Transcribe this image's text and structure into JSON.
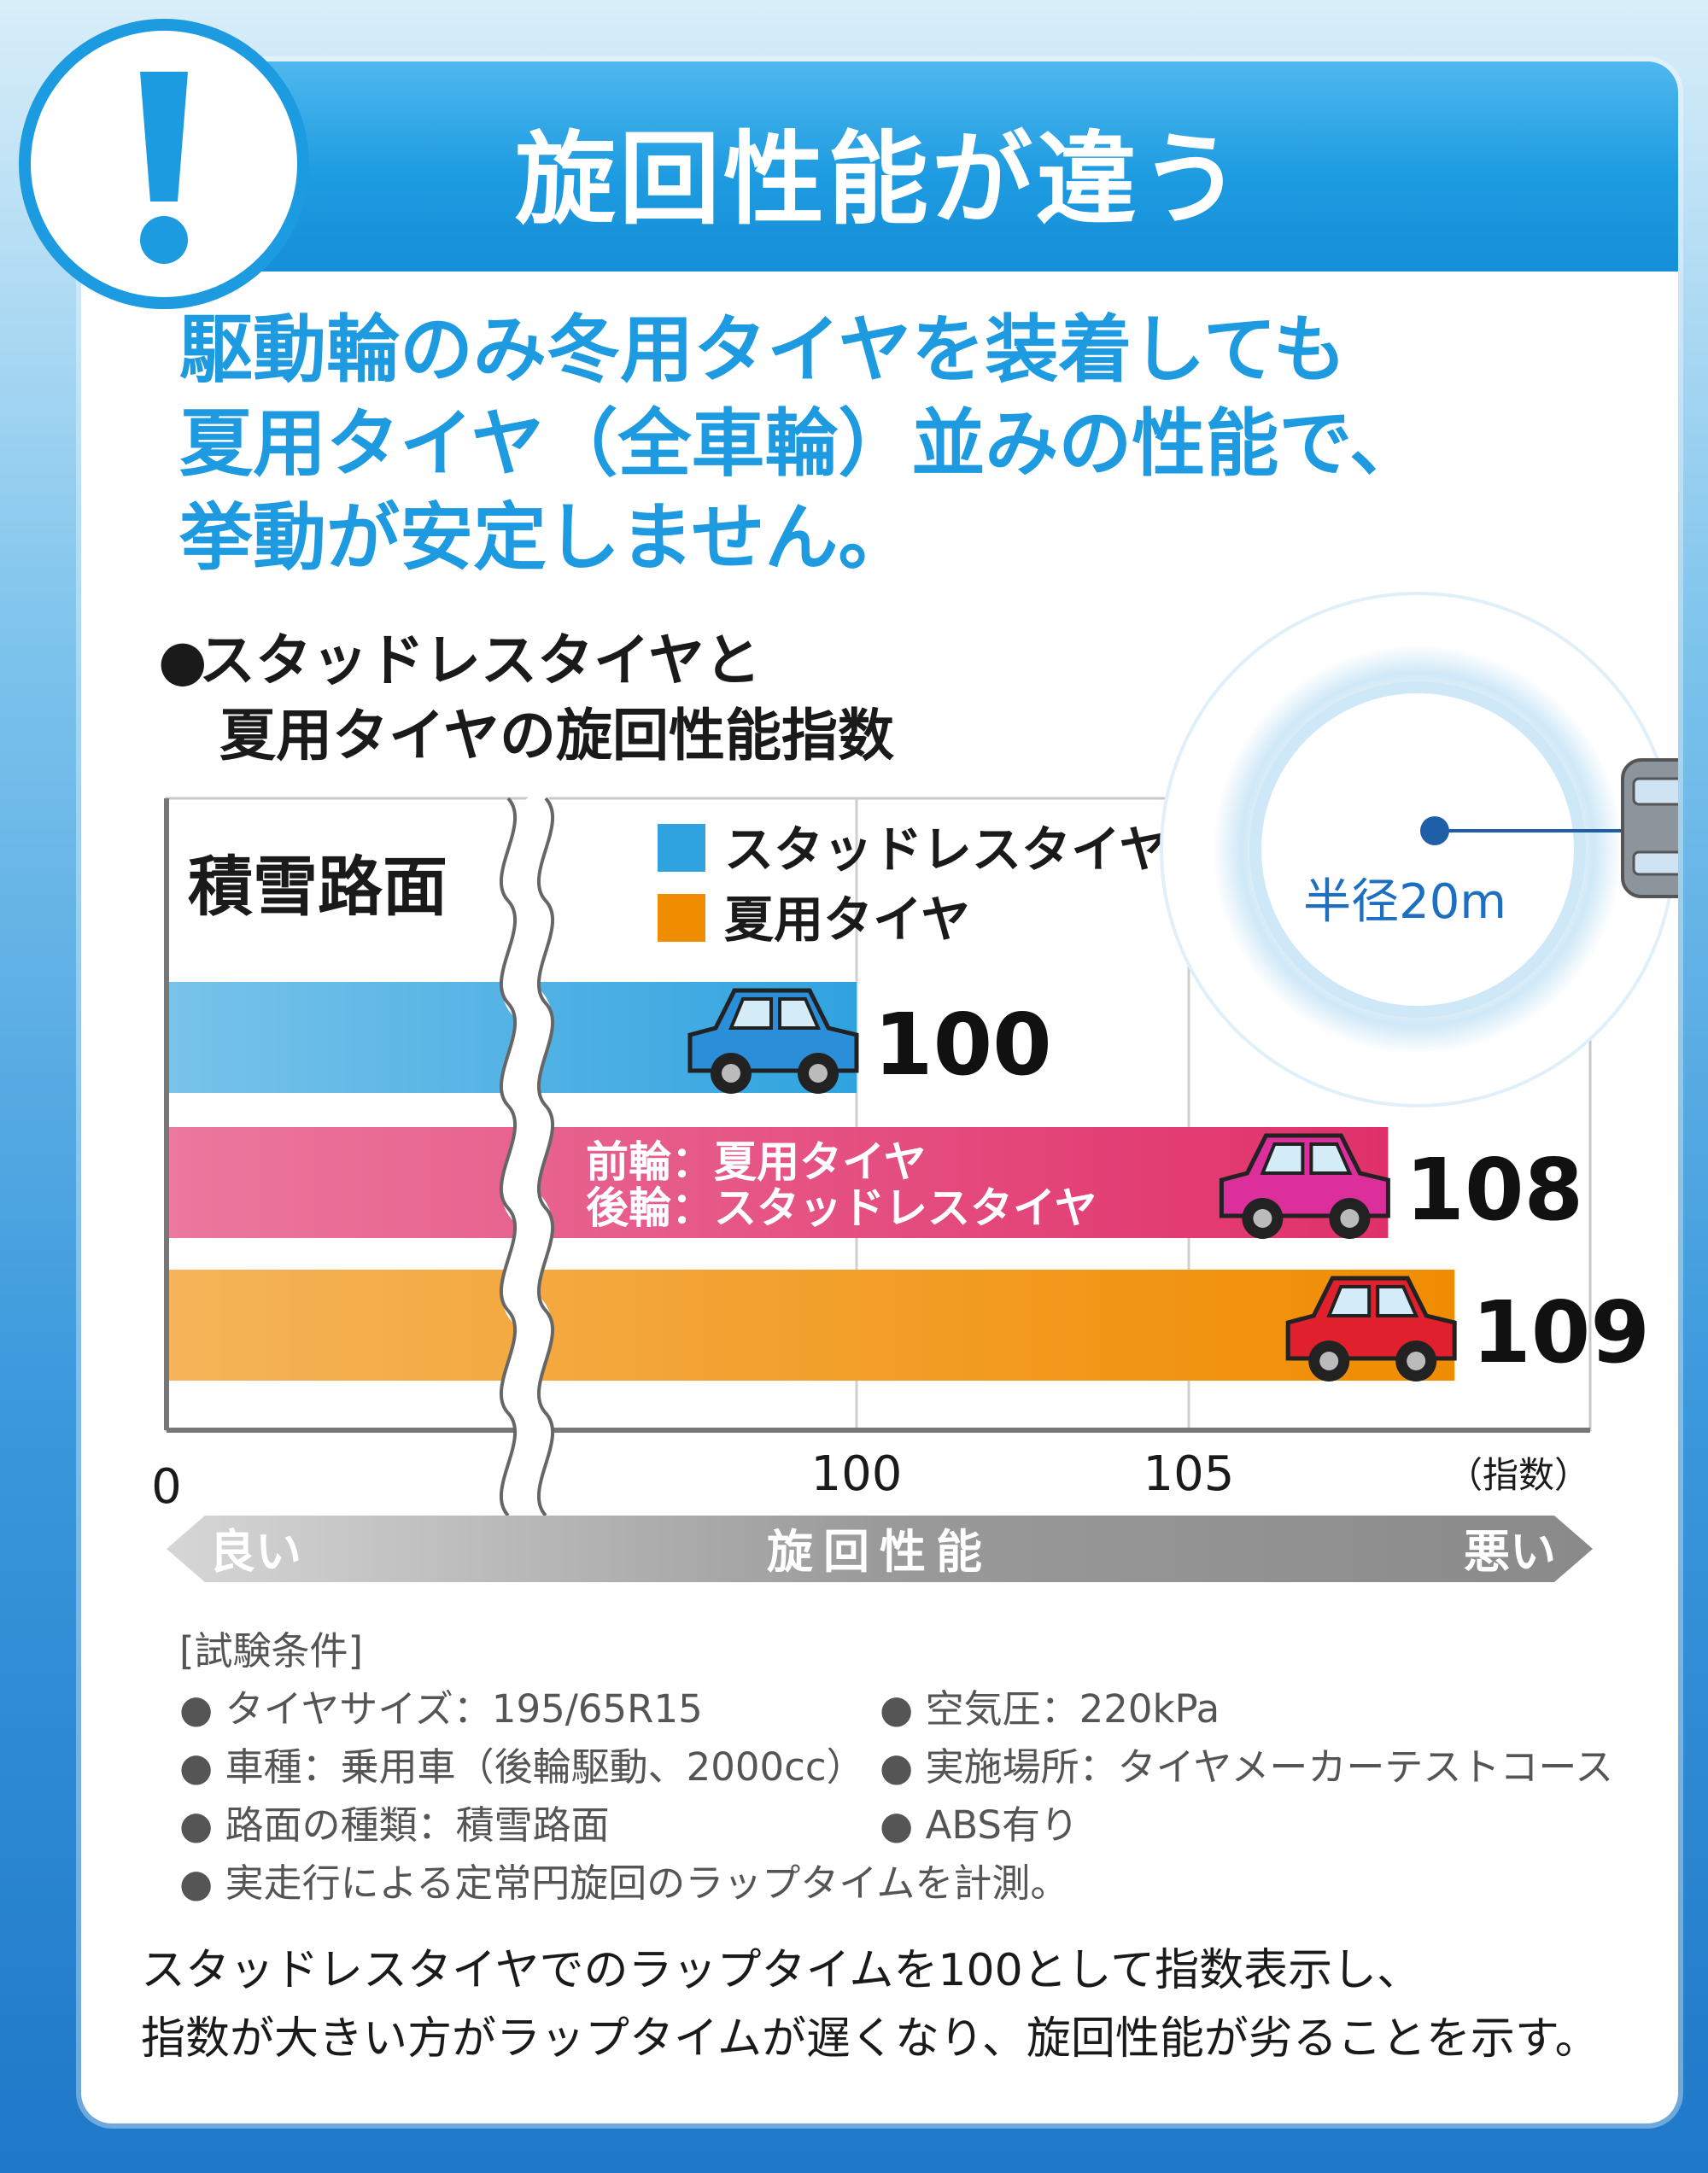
{
  "header": {
    "title": "旋回性能が違う"
  },
  "lead": {
    "line1": "駆動輪のみ冬用タイヤを装着しても",
    "line2": "夏用タイヤ（全車輪）並みの性能で、",
    "line3": "挙動が安定しません。"
  },
  "chart_heading": {
    "bullet": "●",
    "line1": "スタッドレスタイヤと",
    "line2": "夏用タイヤの旋回性能指数"
  },
  "circle_inset": {
    "radius_label": "半径20m"
  },
  "colors": {
    "studless": "#2fa3df",
    "summer": "#f08c00",
    "mixed": "#e0306a",
    "accent": "#1e9be0",
    "card_bg": "#ffffff"
  },
  "chart_data": {
    "type": "bar",
    "orientation": "horizontal",
    "panel_label": "積雪路面",
    "legend": [
      {
        "name": "スタッドレスタイヤ",
        "color": "#2fa3df"
      },
      {
        "name": "夏用タイヤ",
        "color": "#f08c00"
      }
    ],
    "bars": [
      {
        "value": 100,
        "value_label": "100",
        "color": "#2fa3df",
        "car_color": "#2a8fd8",
        "inner_label": []
      },
      {
        "value": 108,
        "value_label": "108",
        "color": "#e0306a",
        "car_color": "#dd2f9c",
        "inner_label": [
          "前輪：夏用タイヤ",
          "後輪：スタッドレスタイヤ"
        ]
      },
      {
        "value": 109,
        "value_label": "109",
        "color": "#f08c00",
        "car_color": "#e0202c",
        "inner_label": []
      }
    ],
    "x_axis": {
      "broken": true,
      "zero_label": "0",
      "ticks": [
        100,
        105
      ],
      "tick_labels": [
        "100",
        "105"
      ],
      "range_after_break": [
        95,
        111.7
      ],
      "unit_label": "（指数）",
      "gridlines": true
    },
    "direction_arrow": {
      "left": "良い",
      "center": "旋回性能",
      "right": "悪い"
    }
  },
  "test_conditions": {
    "heading": "[試験条件]",
    "items": [
      "● タイヤサイズ：195/65R15",
      "● 空気圧：220kPa",
      "● 車種：乗用車（後輪駆動、2000cc）",
      "● 実施場所：タイヤメーカーテストコース",
      "● 路面の種類：積雪路面",
      "● ABS有り"
    ],
    "last": "● 実走行による定常円旋回のラップタイムを計測。"
  },
  "note": {
    "line1": "スタッドレスタイヤでのラップタイムを100として指数表示し、",
    "line2": "指数が大きい方がラップタイムが遅くなり、旋回性能が劣ることを示す。"
  }
}
